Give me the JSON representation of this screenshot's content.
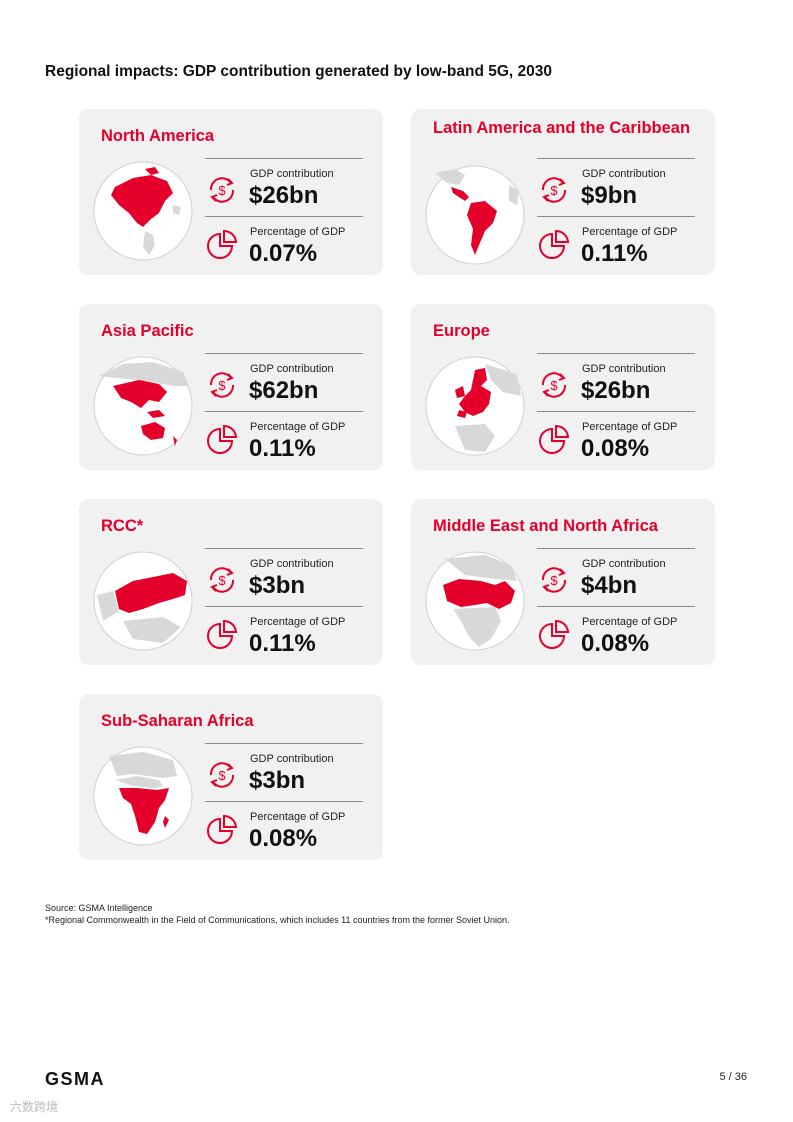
{
  "page_title": "Regional impacts: GDP contribution generated by low-band 5G, 2030",
  "colors": {
    "accent": "#e4002b",
    "card_bg": "#f1f1f1",
    "land": "#d8d8d8"
  },
  "regions": [
    {
      "name": "North America",
      "gdp_label": "GDP contribution",
      "gdp_value": "$26bn",
      "pct_label": "Percentage of GDP",
      "pct_value": "0.07%"
    },
    {
      "name": "Latin America and the Caribbean",
      "gdp_label": "GDP contribution",
      "gdp_value": "$9bn",
      "pct_label": "Percentage of GDP",
      "pct_value": "0.11%"
    },
    {
      "name": "Asia Pacific",
      "gdp_label": "GDP contribution",
      "gdp_value": "$62bn",
      "pct_label": "Percentage of GDP",
      "pct_value": "0.11%"
    },
    {
      "name": "Europe",
      "gdp_label": "GDP contribution",
      "gdp_value": "$26bn",
      "pct_label": "Percentage of GDP",
      "pct_value": "0.08%"
    },
    {
      "name": "RCC*",
      "gdp_label": "GDP contribution",
      "gdp_value": "$3bn",
      "pct_label": "Percentage of GDP",
      "pct_value": "0.11%"
    },
    {
      "name": "Middle East and North Africa",
      "gdp_label": "GDP contribution",
      "gdp_value": "$4bn",
      "pct_label": "Percentage of GDP",
      "pct_value": "0.08%"
    },
    {
      "name": "Sub-Saharan Africa",
      "gdp_label": "GDP contribution",
      "gdp_value": "$3bn",
      "pct_label": "Percentage of GDP",
      "pct_value": "0.08%"
    }
  ],
  "icons": {
    "gdp": "dollar-cycle-icon",
    "pct": "pie-chart-icon"
  },
  "source": "Source: GSMA Intelligence",
  "footnote": "*Regional Commonwealth in the Field of Communications, which includes 11 countries from the former Soviet Union.",
  "logo": "GSMA",
  "page_number": "5 / 36",
  "watermark": "六数跨境"
}
